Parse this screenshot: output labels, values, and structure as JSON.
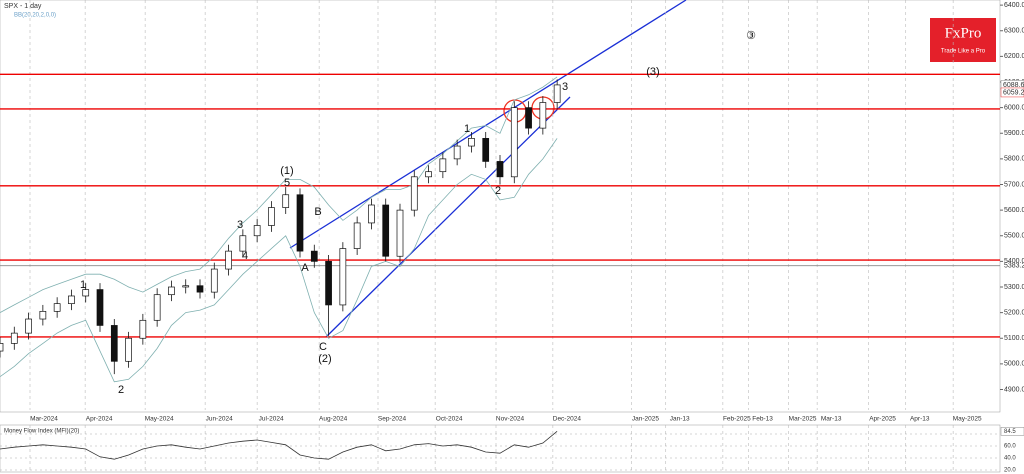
{
  "chart_data": {
    "type": "candlestick",
    "title": "SPX - 1 day",
    "indicator": "BB(20,20,2,0,0)",
    "x": [
      0,
      5,
      10,
      15,
      20,
      25,
      30,
      35,
      40,
      45,
      50,
      55,
      60,
      65,
      70,
      75,
      80,
      85,
      90,
      95,
      100,
      105,
      110,
      115,
      120,
      125,
      130,
      135,
      140,
      145,
      150,
      155,
      160,
      165,
      170,
      175,
      180,
      185,
      190,
      195
    ],
    "open": [
      5050,
      5080,
      5120,
      5175,
      5205,
      5235,
      5265,
      5290,
      5150,
      5010,
      5100,
      5170,
      5270,
      5300,
      5305,
      5280,
      5370,
      5440,
      5500,
      5540,
      5610,
      5660,
      5440,
      5400,
      5230,
      5450,
      5550,
      5620,
      5420,
      5600,
      5730,
      5750,
      5800,
      5850,
      5880,
      5790,
      5730,
      6000,
      5920,
      6020
    ],
    "high": [
      5105,
      5145,
      5200,
      5230,
      5260,
      5290,
      5315,
      5315,
      5175,
      5125,
      5195,
      5295,
      5325,
      5330,
      5330,
      5395,
      5465,
      5525,
      5565,
      5635,
      5690,
      5685,
      5465,
      5425,
      5475,
      5575,
      5645,
      5645,
      5625,
      5755,
      5775,
      5825,
      5875,
      5905,
      5905,
      5815,
      6025,
      6025,
      6045,
      6110
    ],
    "low": [
      5025,
      5055,
      5095,
      5150,
      5180,
      5210,
      5240,
      5125,
      4960,
      4985,
      5075,
      5145,
      5245,
      5275,
      5255,
      5255,
      5345,
      5415,
      5475,
      5515,
      5585,
      5415,
      5375,
      5110,
      5205,
      5425,
      5525,
      5400,
      5395,
      5575,
      5705,
      5725,
      5775,
      5825,
      5765,
      5700,
      5705,
      5895,
      5895,
      5995
    ],
    "close": [
      5080,
      5120,
      5175,
      5205,
      5235,
      5265,
      5290,
      5150,
      5010,
      5100,
      5170,
      5270,
      5300,
      5305,
      5280,
      5370,
      5440,
      5500,
      5540,
      5610,
      5660,
      5440,
      5400,
      5230,
      5450,
      5550,
      5620,
      5420,
      5600,
      5730,
      5750,
      5800,
      5850,
      5880,
      5790,
      5730,
      6000,
      5920,
      6020,
      6088.6
    ],
    "bb_upper": [
      5200,
      5230,
      5260,
      5290,
      5310,
      5330,
      5350,
      5350,
      5330,
      5300,
      5280,
      5310,
      5340,
      5360,
      5370,
      5420,
      5490,
      5550,
      5600,
      5660,
      5720,
      5720,
      5690,
      5620,
      5560,
      5600,
      5650,
      5680,
      5680,
      5700,
      5780,
      5820,
      5870,
      5920,
      5930,
      5900,
      6030,
      6050,
      6080,
      6120
    ],
    "bb_lower": [
      4950,
      4990,
      5040,
      5080,
      5120,
      5150,
      5170,
      5050,
      4930,
      4940,
      4990,
      5060,
      5150,
      5200,
      5210,
      5230,
      5290,
      5350,
      5400,
      5450,
      5500,
      5380,
      5200,
      5100,
      5130,
      5250,
      5380,
      5400,
      5380,
      5450,
      5580,
      5640,
      5700,
      5740,
      5720,
      5640,
      5650,
      5740,
      5800,
      5880
    ],
    "price_marker": 6059.2,
    "gray_level": 5383.2,
    "levels": [
      6130,
      5995,
      5695,
      5405,
      5105
    ],
    "annotations": [
      "1",
      "2",
      "(1)",
      "5",
      "3",
      "4",
      "A",
      "B",
      "C",
      "(2)",
      "1",
      "2",
      "3",
      "(3)",
      "③"
    ],
    "xlim": [
      0,
      350
    ],
    "ylim": [
      4820,
      6420
    ],
    "yticks": [
      {
        "value": 4900,
        "label": "4900.0"
      },
      {
        "value": 5000,
        "label": "5000.0"
      },
      {
        "value": 5100,
        "label": "5100.0"
      },
      {
        "value": 5200,
        "label": "5200.0"
      },
      {
        "value": 5300,
        "label": "5300.0"
      },
      {
        "value": 5400,
        "label": "5400.0"
      },
      {
        "value": 5500,
        "label": "5500.0"
      },
      {
        "value": 5600,
        "label": "5600.0"
      },
      {
        "value": 5700,
        "label": "5700.0"
      },
      {
        "value": 5800,
        "label": "5800.0"
      },
      {
        "value": 5900,
        "label": "5900.0"
      },
      {
        "value": 6000,
        "label": "6000.0"
      },
      {
        "value": 6100,
        "label": "6100.0"
      },
      {
        "value": 6200,
        "label": "6200.0"
      },
      {
        "value": 6300,
        "label": "6300.0"
      },
      {
        "value": 6400,
        "label": "6400.0"
      }
    ],
    "xticks": [
      {
        "value": 10.5,
        "label": "Mar-2024"
      },
      {
        "value": 29.8,
        "label": "Apr-2024"
      },
      {
        "value": 50.8,
        "label": "May-2024"
      },
      {
        "value": 71.8,
        "label": "Jun-2024"
      },
      {
        "value": 90,
        "label": "Jul-2024"
      },
      {
        "value": 111.7,
        "label": "Aug-2024"
      },
      {
        "value": 132.3,
        "label": "Sep-2024"
      },
      {
        "value": 152.3,
        "label": "Oct-2024"
      },
      {
        "value": 173.6,
        "label": "Nov-2024"
      },
      {
        "value": 193.5,
        "label": "Dec-2024"
      },
      {
        "value": 221,
        "label": "Jan-2025"
      },
      {
        "value": 233,
        "label": "Jan-13"
      },
      {
        "value": 253,
        "label": "Feb-2025"
      },
      {
        "value": 262,
        "label": "Feb-13"
      },
      {
        "value": 276,
        "label": "Mar-2025"
      },
      {
        "value": 286,
        "label": "Mar-13"
      },
      {
        "value": 304,
        "label": "Apr-2025"
      },
      {
        "value": 317,
        "label": "Apr-13"
      },
      {
        "value": 333.6,
        "label": "May-2025"
      }
    ],
    "mfi": {
      "title": "Money Flow Index (MFI)(20)",
      "values": [
        55,
        58,
        60,
        62,
        60,
        58,
        55,
        42,
        38,
        45,
        55,
        60,
        62,
        58,
        55,
        60,
        65,
        68,
        70,
        66,
        62,
        45,
        40,
        38,
        50,
        58,
        62,
        52,
        55,
        62,
        64,
        60,
        62,
        58,
        50,
        48,
        62,
        58,
        65,
        84.5
      ],
      "ylim": [
        20,
        100
      ],
      "yticks": [
        {
          "value": 20,
          "label": "20.0"
        },
        {
          "value": 40,
          "label": "40.0"
        },
        {
          "value": 60,
          "label": "60.0"
        },
        {
          "value": 80,
          "label": "80.0"
        }
      ]
    }
  },
  "brand": {
    "name": "FxPro",
    "tagline": "Trade Like a Pro"
  }
}
